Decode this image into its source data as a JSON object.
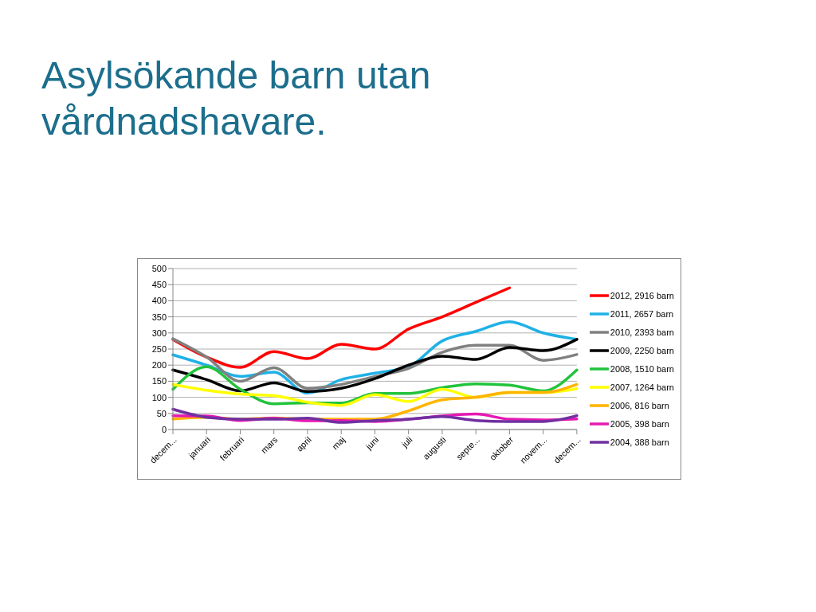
{
  "chart_data": {
    "type": "line",
    "title": "Asylsökande barn utan vårdnadshavare.",
    "categories": [
      "decem...",
      "januari",
      "februari",
      "mars",
      "april",
      "maj",
      "juni",
      "juli",
      "augusti",
      "septe...",
      "oktober",
      "novem...",
      "decem..."
    ],
    "series": [
      {
        "name": "2012, 2916 barn",
        "color": "#ff0000",
        "values": [
          280,
          225,
          193,
          242,
          220,
          265,
          250,
          312,
          350,
          395,
          440,
          null,
          null
        ]
      },
      {
        "name": "2011, 2657 barn",
        "color": "#1fb1e6",
        "values": [
          232,
          200,
          165,
          178,
          113,
          155,
          175,
          195,
          275,
          305,
          335,
          300,
          280
        ]
      },
      {
        "name": "2010, 2393 barn",
        "color": "#808080",
        "values": [
          282,
          225,
          150,
          192,
          128,
          140,
          165,
          190,
          240,
          262,
          262,
          215,
          233
        ]
      },
      {
        "name": "2009, 2250 barn",
        "color": "#000000",
        "values": [
          185,
          155,
          120,
          145,
          118,
          128,
          158,
          200,
          228,
          218,
          255,
          245,
          280
        ]
      },
      {
        "name": "2008, 1510 barn",
        "color": "#22c33c",
        "values": [
          125,
          195,
          125,
          80,
          83,
          82,
          112,
          112,
          130,
          142,
          138,
          120,
          185
        ]
      },
      {
        "name": "2007, 1264 barn",
        "color": "#ffff00",
        "values": [
          140,
          122,
          110,
          105,
          85,
          75,
          108,
          87,
          125,
          100,
          115,
          115,
          127
        ]
      },
      {
        "name": "2006, 816 barn",
        "color": "#ffb400",
        "values": [
          33,
          38,
          32,
          36,
          32,
          32,
          32,
          58,
          92,
          100,
          115,
          115,
          140
        ]
      },
      {
        "name": "2005, 398 barn",
        "color": "#e619b4",
        "values": [
          43,
          42,
          28,
          35,
          27,
          28,
          25,
          32,
          42,
          48,
          32,
          30,
          33
        ]
      },
      {
        "name": "2004, 388 barn",
        "color": "#7030a0",
        "values": [
          63,
          38,
          32,
          32,
          35,
          22,
          28,
          32,
          40,
          28,
          25,
          25,
          43
        ]
      }
    ],
    "ylim": [
      0,
      500
    ],
    "yticks": [
      0,
      50,
      100,
      150,
      200,
      250,
      300,
      350,
      400,
      450,
      500
    ],
    "grid": "y",
    "legend": "right",
    "marker": "none",
    "line_style": "solid"
  }
}
